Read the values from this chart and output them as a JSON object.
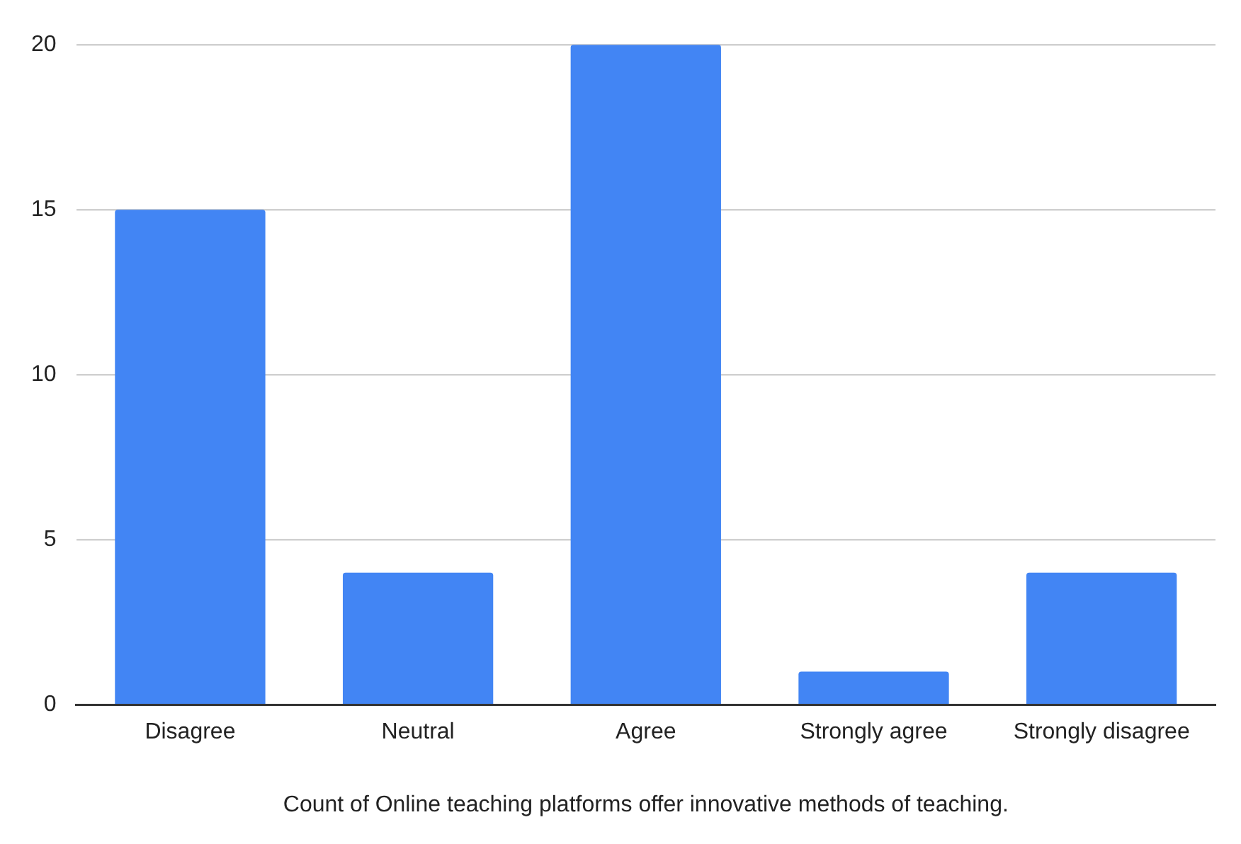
{
  "chart_data": {
    "type": "bar",
    "xlabel": "Count of Online teaching platforms offer innovative methods of teaching.",
    "categories": [
      "Disagree",
      "Neutral",
      "Agree",
      "Strongly agree",
      "Strongly disagree"
    ],
    "values": [
      15,
      4,
      20,
      1,
      4
    ],
    "color": "#4285f4",
    "ylim": [
      0,
      20
    ],
    "yticks": [
      0,
      5,
      10,
      15,
      20
    ],
    "grid": "y",
    "legend": false
  }
}
